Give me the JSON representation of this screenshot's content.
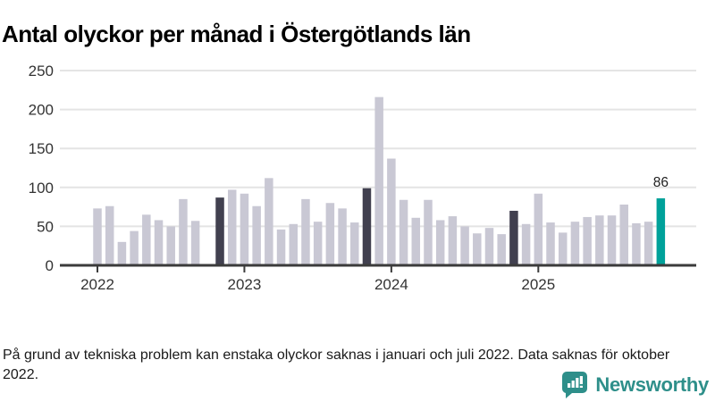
{
  "title": "Antal olyckor per månad i Östergötlands län",
  "footnote": "På grund av tekniska problem kan enstaka olyckor saknas i januari och juli 2022. Data saknas för oktober 2022.",
  "branding": {
    "name": "Newsworthy",
    "logo_icon": "newsworthy-speech-bubble-bar-chart-icon",
    "color": "#2e8f8a"
  },
  "colors": {
    "bar_default": "#c9c8d4",
    "bar_highlight_dark": "#41404f",
    "bar_highlight_teal": "#00a19a",
    "gridline": "#e4e4e4",
    "axis_line": "#3b3b3b",
    "tick_label": "#333333",
    "annotation": "#222222"
  },
  "chart_data": {
    "type": "bar",
    "title": "Antal olyckor per månad i Östergötlands län",
    "xlabel": "",
    "ylabel": "",
    "ylim": [
      0,
      250
    ],
    "yticks": [
      0,
      50,
      100,
      150,
      200,
      250
    ],
    "grid": "horizontal",
    "x_year_ticks": [
      "2022",
      "2023",
      "2024",
      "2025"
    ],
    "years": [
      "2022",
      "2023",
      "2024",
      "2025"
    ],
    "values_by_year": {
      "2022": [
        73,
        76,
        30,
        44,
        65,
        58,
        50,
        85,
        57,
        null,
        87,
        97
      ],
      "2023": [
        92,
        76,
        112,
        46,
        53,
        85,
        56,
        80,
        73,
        55,
        99,
        216
      ],
      "2024": [
        137,
        84,
        61,
        84,
        58,
        63,
        50,
        41,
        48,
        40,
        70,
        53
      ],
      "2025": [
        92,
        55,
        42,
        56,
        62,
        64,
        64,
        78,
        54,
        56,
        86
      ]
    },
    "missing_months": [
      "2022-10"
    ],
    "highlighted_dark_months": [
      "2022-11",
      "2023-11",
      "2024-11"
    ],
    "latest_bar": {
      "month": "2025-11",
      "value": 86,
      "label": "86",
      "style": "teal"
    }
  }
}
